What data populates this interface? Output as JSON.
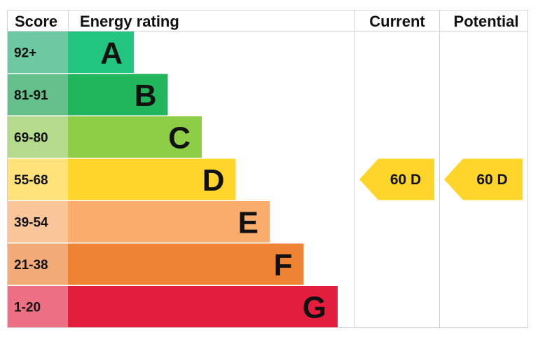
{
  "header": {
    "score": "Score",
    "energy_rating": "Energy rating",
    "current": "Current",
    "potential": "Potential"
  },
  "chart_data": {
    "type": "bar",
    "categories": [
      "A",
      "B",
      "C",
      "D",
      "E",
      "F",
      "G"
    ],
    "score_ranges": [
      "92+",
      "81-91",
      "69-80",
      "55-68",
      "39-54",
      "21-38",
      "1-20"
    ],
    "band_colors": [
      "#22c57f",
      "#21b55c",
      "#8dce46",
      "#ffd52b",
      "#f9ac6b",
      "#ee8333",
      "#e21e3c"
    ],
    "score_colors": [
      "#6cc9a2",
      "#66c08c",
      "#b5dc8d",
      "#ffe27a",
      "#fbc59a",
      "#f2aa77",
      "#ed6f84"
    ],
    "current": {
      "value": 60,
      "band": "D",
      "label": "60  D",
      "color": "#ffd52b"
    },
    "potential": {
      "value": 60,
      "band": "D",
      "label": "60  D",
      "color": "#ffd52b"
    }
  }
}
